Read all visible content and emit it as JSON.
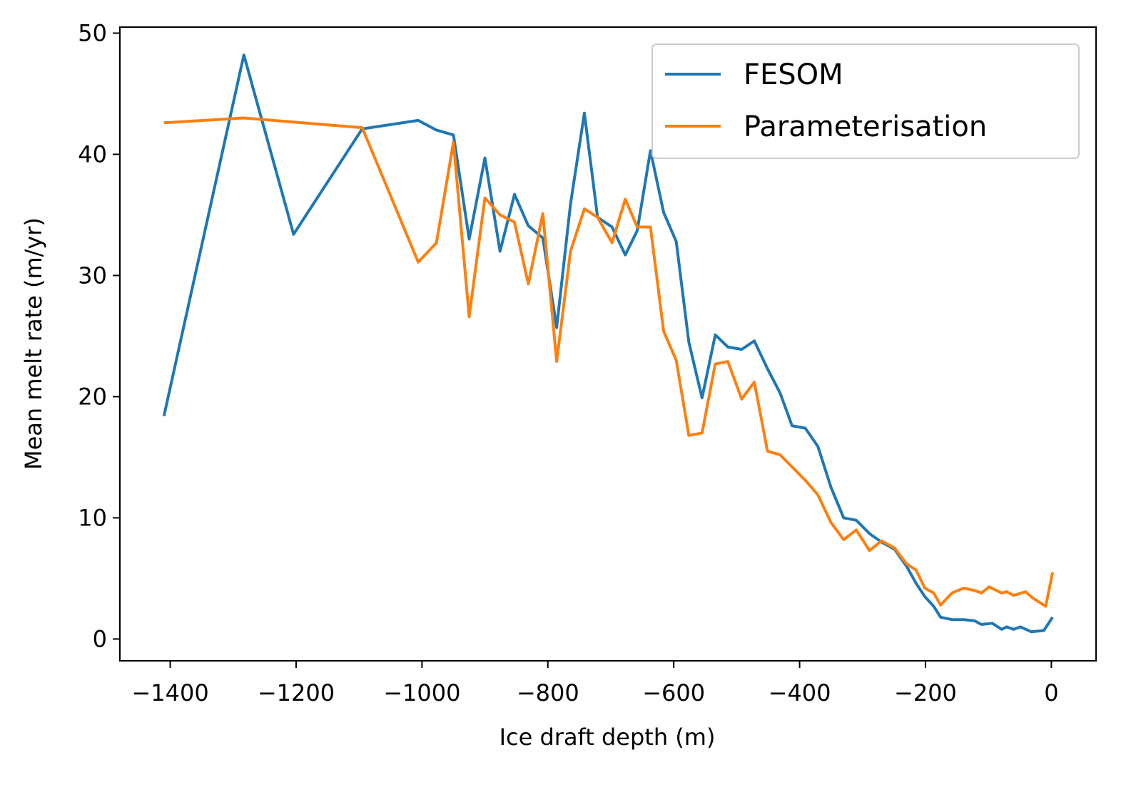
{
  "chart_data": {
    "type": "line",
    "xlabel": "Ice draft depth (m)",
    "ylabel": "Mean melt rate (m/yr)",
    "xlim": [
      -1480,
      71
    ],
    "ylim": [
      -1.8,
      50.5
    ],
    "xticks": [
      {
        "value": -1400,
        "label": "−1400"
      },
      {
        "value": -1200,
        "label": "−1200"
      },
      {
        "value": -1000,
        "label": "−1000"
      },
      {
        "value": -800,
        "label": "−800"
      },
      {
        "value": -600,
        "label": "−600"
      },
      {
        "value": -400,
        "label": "−400"
      },
      {
        "value": -200,
        "label": "−200"
      },
      0
    ],
    "yticks": [
      0,
      10,
      20,
      30,
      40,
      50
    ],
    "legend": "upper right",
    "series": [
      {
        "name": "FESOM",
        "color": "#1f77b4",
        "x": [
          -1410,
          -1283,
          -1204,
          -1095,
          -1006,
          -977,
          -950,
          -925,
          -900,
          -876,
          -853,
          -831,
          -808,
          -786,
          -764,
          -742,
          -721,
          -698,
          -677,
          -658,
          -637,
          -616,
          -596,
          -576,
          -555,
          -534,
          -514,
          -492,
          -472,
          -451,
          -431,
          -412,
          -391,
          -371,
          -350,
          -330,
          -310,
          -289,
          -270,
          -249,
          -230,
          -215,
          -201,
          -187,
          -176,
          -158,
          -139,
          -122,
          -111,
          -94,
          -79,
          -71,
          -60,
          -49,
          -32,
          -12,
          2
        ],
        "values": [
          18.4,
          48.2,
          33.4,
          42.1,
          42.8,
          42.0,
          41.6,
          33.0,
          39.7,
          32.0,
          36.7,
          34.1,
          33.1,
          25.7,
          35.9,
          43.4,
          34.8,
          34.0,
          31.7,
          33.7,
          40.3,
          35.2,
          32.8,
          24.5,
          19.9,
          25.1,
          24.1,
          23.9,
          24.6,
          22.3,
          20.3,
          17.6,
          17.4,
          15.9,
          12.5,
          10.0,
          9.8,
          8.7,
          8.0,
          7.4,
          6.0,
          4.6,
          3.5,
          2.7,
          1.8,
          1.6,
          1.6,
          1.5,
          1.2,
          1.3,
          0.8,
          1.0,
          0.8,
          1.0,
          0.6,
          0.7,
          1.8
        ]
      },
      {
        "name": "Parameterisation",
        "color": "#ff7f0e",
        "x": [
          -1410,
          -1283,
          -1095,
          -1006,
          -977,
          -950,
          -925,
          -900,
          -876,
          -853,
          -831,
          -808,
          -786,
          -764,
          -742,
          -721,
          -698,
          -677,
          -658,
          -637,
          -616,
          -596,
          -576,
          -555,
          -534,
          -514,
          -492,
          -472,
          -451,
          -431,
          -412,
          -391,
          -371,
          -350,
          -330,
          -310,
          -289,
          -270,
          -249,
          -230,
          -215,
          -201,
          -187,
          -176,
          -158,
          -139,
          -122,
          -111,
          -99,
          -79,
          -71,
          -60,
          -41,
          -30,
          -9,
          2
        ],
        "values": [
          42.6,
          43.0,
          42.2,
          31.1,
          32.7,
          41.0,
          26.6,
          36.4,
          35.0,
          34.4,
          29.3,
          35.1,
          22.9,
          32.0,
          35.5,
          34.8,
          32.7,
          36.3,
          34.0,
          34.0,
          25.4,
          23.0,
          16.8,
          17.0,
          22.7,
          22.9,
          19.8,
          21.2,
          15.5,
          15.2,
          14.2,
          13.1,
          11.9,
          9.6,
          8.2,
          9.0,
          7.3,
          8.1,
          7.5,
          6.2,
          5.7,
          4.2,
          3.8,
          2.8,
          3.8,
          4.2,
          4.0,
          3.8,
          4.3,
          3.8,
          3.9,
          3.6,
          3.9,
          3.4,
          2.7,
          5.5
        ]
      }
    ]
  }
}
